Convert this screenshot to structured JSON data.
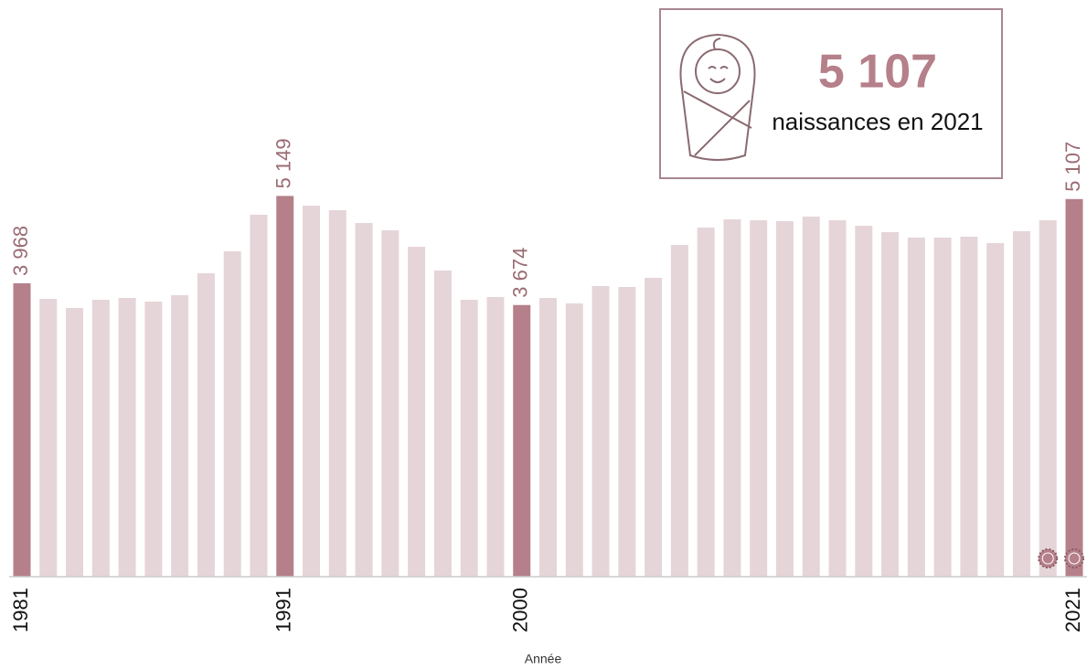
{
  "chart_data": {
    "type": "bar",
    "x_label": "Année",
    "categories": [
      "1981",
      null,
      null,
      null,
      null,
      null,
      null,
      null,
      null,
      null,
      "1991",
      null,
      null,
      null,
      null,
      null,
      null,
      null,
      null,
      "2000",
      null,
      null,
      null,
      null,
      null,
      null,
      null,
      null,
      null,
      null,
      null,
      null,
      null,
      null,
      null,
      null,
      null,
      null,
      null,
      null,
      "2021"
    ],
    "values": [
      3968,
      3757,
      3634,
      3745,
      3770,
      3720,
      3807,
      4104,
      4400,
      4895,
      5149,
      5018,
      4956,
      4783,
      4684,
      4462,
      4141,
      3745,
      3782,
      3674,
      3770,
      3696,
      3930,
      3918,
      4042,
      4487,
      4721,
      4833,
      4820,
      4808,
      4870,
      4820,
      4746,
      4660,
      4586,
      4586,
      4598,
      4511,
      4672,
      4820,
      5107
    ],
    "value_labels": [
      "3 968",
      null,
      null,
      null,
      null,
      null,
      null,
      null,
      null,
      null,
      "5 149",
      null,
      null,
      null,
      null,
      null,
      null,
      null,
      null,
      "3 674",
      null,
      null,
      null,
      null,
      null,
      null,
      null,
      null,
      null,
      null,
      null,
      null,
      null,
      null,
      null,
      null,
      null,
      null,
      null,
      null,
      "5 107"
    ],
    "color": "#e6d5d8",
    "highlight_color": "#b5808a",
    "ylim": [
      0,
      5500
    ],
    "callout": {
      "value_label": "5 107",
      "text": "naissances en 2021"
    }
  }
}
